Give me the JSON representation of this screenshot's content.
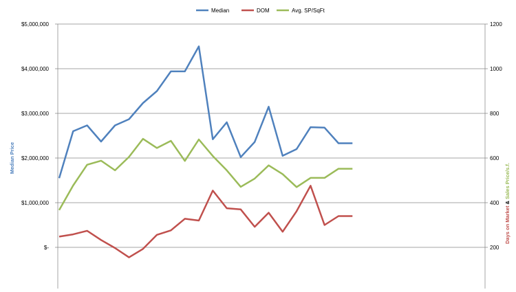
{
  "chart_data": {
    "type": "line",
    "x": [
      1,
      2,
      3,
      4,
      5,
      6,
      7,
      8,
      9,
      10,
      11,
      12,
      13,
      14,
      15,
      16,
      17,
      18,
      19,
      20,
      21,
      22
    ],
    "left_axis": {
      "label": "Median Price",
      "range": [
        0,
        5000000
      ],
      "tick_values": [
        0,
        1000000,
        2000000,
        3000000,
        4000000,
        5000000
      ],
      "tick_labels": [
        "$-",
        "$1,000,000",
        "$2,000,000",
        "$3,000,000",
        "$4,000,000",
        "$5,000,000"
      ]
    },
    "right_axis": {
      "label_parts": [
        {
          "text": "Days on Market",
          "color": "#c0504d"
        },
        {
          "text": " & ",
          "color": "#000000"
        },
        {
          "text": "Sales Price/s.f.",
          "color": "#9bbb59"
        }
      ],
      "range": [
        200,
        1200
      ],
      "tick_values": [
        200,
        400,
        600,
        800,
        1000,
        1200
      ],
      "tick_labels": [
        "200",
        "400",
        "600",
        "800",
        "1000",
        "1200"
      ]
    },
    "series": [
      {
        "name": "Median",
        "axis": "left",
        "color": "#4f81bd",
        "values": [
          1550000,
          2600000,
          2730000,
          2370000,
          2730000,
          2870000,
          3230000,
          3500000,
          3940000,
          3940000,
          4500000,
          2420000,
          2800000,
          2020000,
          2360000,
          3150000,
          2050000,
          2200000,
          2690000,
          2680000,
          2330000,
          2330000
        ]
      },
      {
        "name": "DOM",
        "axis": "right",
        "color": "#c0504d",
        "values": [
          248,
          258,
          274,
          233,
          197,
          155,
          193,
          256,
          276,
          328,
          320,
          454,
          375,
          370,
          292,
          355,
          270,
          362,
          476,
          300,
          340,
          340
        ]
      },
      {
        "name": "Avg. SP/SqFt",
        "axis": "right",
        "color": "#9bbb59",
        "values": [
          367,
          477,
          570,
          588,
          545,
          605,
          686,
          645,
          677,
          587,
          683,
          609,
          545,
          471,
          508,
          567,
          528,
          470,
          511,
          511,
          552,
          552
        ]
      }
    ],
    "legend_position": "top-center",
    "grid": "horizontal"
  }
}
